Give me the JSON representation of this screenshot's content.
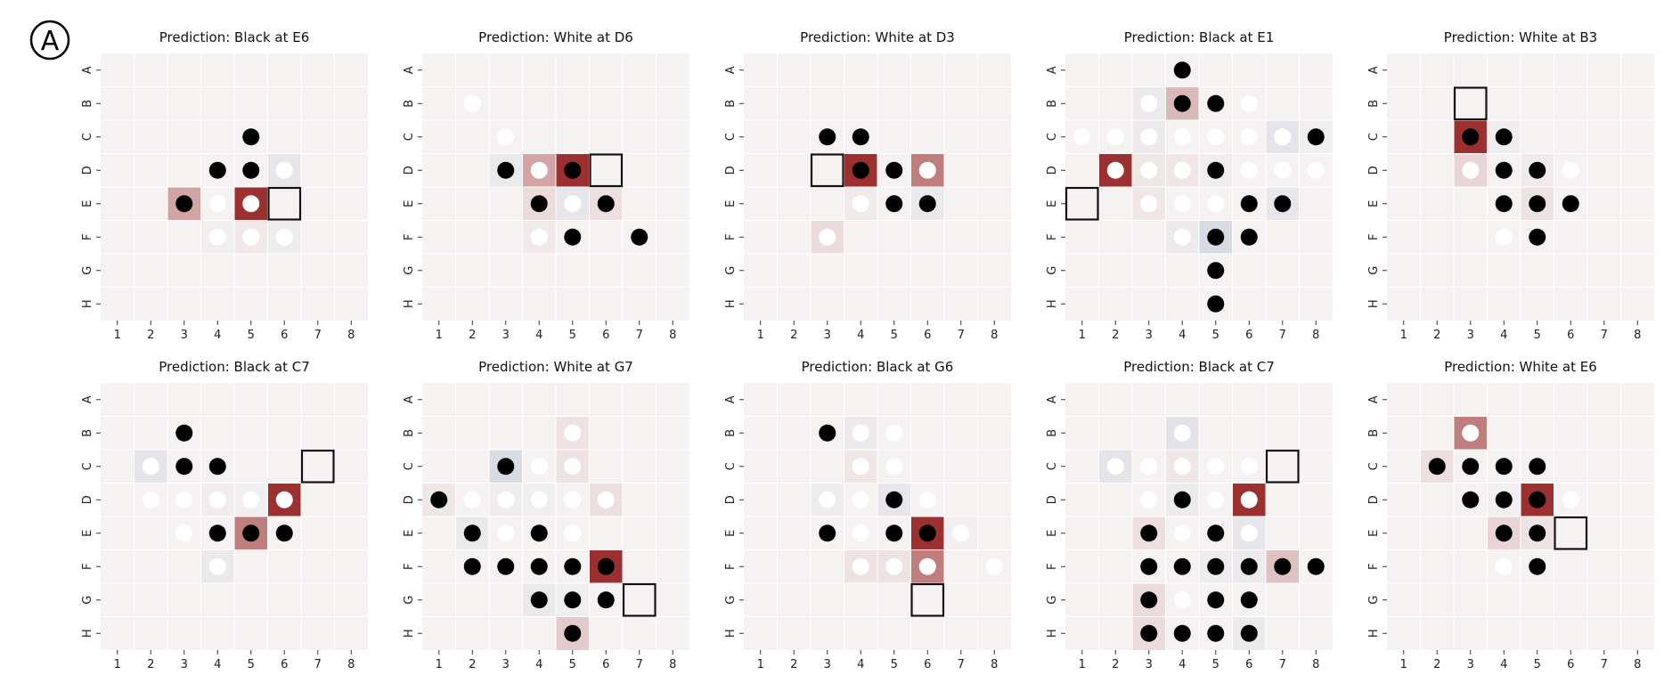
{
  "figure_label": "A",
  "axes": {
    "rows": [
      "A",
      "B",
      "C",
      "D",
      "E",
      "F",
      "G",
      "H"
    ],
    "cols": [
      "1",
      "2",
      "3",
      "4",
      "5",
      "6",
      "7",
      "8"
    ]
  },
  "colors": {
    "board_bg": "#f6f2f2",
    "grid_line": "#ffffff",
    "black_piece": "#000000",
    "white_piece": "#ffffff",
    "heat_positive": "#9c2f2f",
    "heat_negative": "#c9cfdd",
    "target_box": "#111111"
  },
  "boards": [
    {
      "title": "Prediction: Black at E6",
      "target": "E6",
      "black": [
        "C5",
        "D4",
        "D5",
        "E3"
      ],
      "white": [
        "D6",
        "E4",
        "E5",
        "F4",
        "F5",
        "F6"
      ],
      "heat": {
        "E5": 1.0,
        "E3": 0.4,
        "D6": -0.15,
        "F6": -0.08,
        "F4": -0.05,
        "F5": 0.05
      }
    },
    {
      "title": "Prediction: White at D6",
      "target": "D6",
      "black": [
        "D3",
        "D5",
        "E4",
        "E6",
        "F5",
        "F7"
      ],
      "white": [
        "B2",
        "C3",
        "D4",
        "E5",
        "F4"
      ],
      "heat": {
        "D5": 1.0,
        "D4": 0.4,
        "D3": -0.12,
        "E4": 0.12,
        "E5": -0.15,
        "E6": 0.1,
        "F4": 0.04
      }
    },
    {
      "title": "Prediction: White at D3",
      "target": "D3",
      "black": [
        "C3",
        "C4",
        "D4",
        "D5",
        "E5",
        "E6"
      ],
      "white": [
        "D6",
        "E4",
        "F3"
      ],
      "heat": {
        "D4": 1.0,
        "D6": 0.6,
        "E6": -0.12,
        "F3": 0.12,
        "E4": 0.04
      }
    },
    {
      "title": "Prediction: Black at E1",
      "target": "E1",
      "black": [
        "A4",
        "B4",
        "B5",
        "C8",
        "D5",
        "E6",
        "E7",
        "F5",
        "F6",
        "G5",
        "H5"
      ],
      "white": [
        "B3",
        "B6",
        "C1",
        "C2",
        "C3",
        "C4",
        "C5",
        "C6",
        "C7",
        "D2",
        "D3",
        "D4",
        "D6",
        "D7",
        "D8",
        "E3",
        "E4",
        "E5",
        "F4"
      ],
      "heat": {
        "D2": 1.0,
        "B4": 0.3,
        "F5": -0.3,
        "C7": -0.18,
        "E7": -0.15,
        "B3": -0.1,
        "C3": -0.1,
        "F4": -0.1,
        "C8": -0.05,
        "D3": 0.06,
        "E3": 0.06,
        "D4": 0.06,
        "D5": -0.06
      }
    },
    {
      "title": "Prediction: White at B3",
      "target": "B3",
      "black": [
        "C3",
        "C4",
        "D4",
        "D5",
        "E4",
        "E5",
        "E6",
        "F5"
      ],
      "white": [
        "D3",
        "D6",
        "F4"
      ],
      "heat": {
        "C3": 1.0,
        "D3": 0.15,
        "C4": -0.06,
        "E5": 0.08,
        "D5": 0.04
      }
    },
    {
      "title": "Prediction: Black at C7",
      "target": "C7",
      "black": [
        "B3",
        "C3",
        "C4",
        "E4",
        "E5",
        "E6"
      ],
      "white": [
        "C2",
        "D2",
        "D3",
        "D4",
        "D5",
        "D6",
        "E3",
        "F4"
      ],
      "heat": {
        "D6": 1.0,
        "E5": 0.6,
        "C2": -0.18,
        "F4": -0.12,
        "D5": -0.05,
        "D4": 0.03
      }
    },
    {
      "title": "Prediction: White at G7",
      "target": "G7",
      "black": [
        "C3",
        "D1",
        "E2",
        "E4",
        "F2",
        "F3",
        "F4",
        "F5",
        "F6",
        "G4",
        "G5",
        "G6",
        "H5"
      ],
      "white": [
        "B5",
        "C4",
        "C5",
        "D2",
        "D3",
        "D4",
        "D5",
        "D6",
        "E3",
        "E5"
      ],
      "heat": {
        "F6": 1.0,
        "H5": 0.2,
        "C3": -0.3,
        "E2": -0.12,
        "G4": -0.12,
        "D6": 0.1,
        "B5": 0.08,
        "C5": 0.08,
        "D1": 0.06,
        "D3": -0.06,
        "G5": -0.05,
        "D4": -0.05
      }
    },
    {
      "title": "Prediction: Black at G6",
      "target": "G6",
      "black": [
        "B3",
        "D5",
        "E3",
        "E5",
        "E6"
      ],
      "white": [
        "B4",
        "B5",
        "C4",
        "C5",
        "D3",
        "D4",
        "D6",
        "E4",
        "E7",
        "F4",
        "F5",
        "F6",
        "F8"
      ],
      "heat": {
        "E6": 1.0,
        "F6": 0.6,
        "D5": -0.15,
        "B4": -0.1,
        "D3": -0.08,
        "C4": 0.06,
        "F4": 0.08,
        "F5": 0.08,
        "E7": -0.04
      }
    },
    {
      "title": "Prediction: Black at C7",
      "target": "C7",
      "black": [
        "D4",
        "E3",
        "E5",
        "F3",
        "F4",
        "F5",
        "F6",
        "F7",
        "F8",
        "G3",
        "G5",
        "G6",
        "H3",
        "H4",
        "H5",
        "H6"
      ],
      "white": [
        "B4",
        "C2",
        "C3",
        "C4",
        "C5",
        "C6",
        "D3",
        "D5",
        "D6",
        "E4",
        "E6",
        "G4"
      ],
      "heat": {
        "D6": 1.0,
        "F7": 0.25,
        "B4": -0.2,
        "C2": -0.18,
        "E6": -0.15,
        "D4": -0.1,
        "F6": -0.1,
        "H6": -0.12,
        "F5": -0.08,
        "H3": 0.12,
        "G3": 0.12,
        "E3": 0.1,
        "C4": 0.06
      }
    },
    {
      "title": "Prediction: White at E6",
      "target": "E6",
      "black": [
        "C2",
        "C3",
        "C4",
        "C5",
        "D3",
        "D4",
        "D5",
        "E4",
        "E5",
        "F5"
      ],
      "white": [
        "B3",
        "D6",
        "F4"
      ],
      "heat": {
        "D5": 1.0,
        "B3": 0.6,
        "C2": 0.1,
        "E4": 0.15,
        "E5": 0.08,
        "D4": -0.04
      }
    }
  ]
}
